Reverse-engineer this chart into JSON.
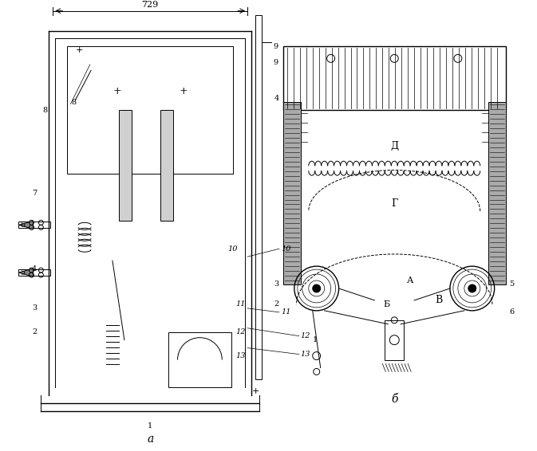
{
  "bg_color": "#ffffff",
  "line_color": "#000000",
  "figure_width": 6.73,
  "figure_height": 5.66,
  "label_a": "а",
  "label_b": "б",
  "dim_text": "729",
  "labels_left": [
    "1",
    "2",
    "3",
    "4",
    "5",
    "6",
    "7",
    "8",
    "9",
    "10",
    "11",
    "12",
    "13"
  ],
  "labels_right": [
    "1",
    "2",
    "3",
    "4",
    "5",
    "6"
  ],
  "cyrillic_labels": [
    "Д",
    "Г",
    "Б",
    "А",
    "В"
  ]
}
